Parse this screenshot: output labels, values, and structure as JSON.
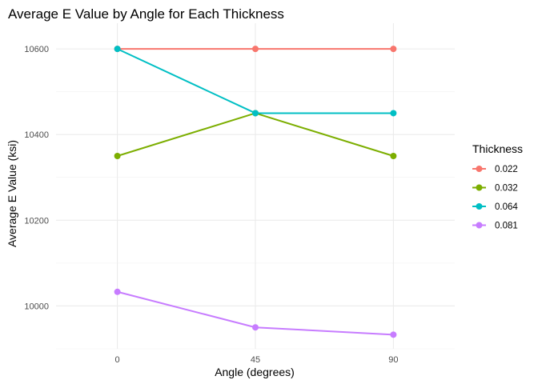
{
  "chart_data": {
    "type": "line",
    "title": "Average E Value by Angle for Each Thickness",
    "xlabel": "Angle (degrees)",
    "ylabel": "Average E Value (ksi)",
    "x": [
      0,
      45,
      90
    ],
    "x_tick_labels": [
      "0",
      "45",
      "90"
    ],
    "xlim": [
      -20,
      110
    ],
    "ylim": [
      9900,
      10660
    ],
    "y_major_ticks": [
      10000,
      10200,
      10400,
      10600
    ],
    "y_tick_labels": [
      "10000",
      "10200",
      "10400",
      "10600"
    ],
    "y_minor_ticks": [
      9900,
      10100,
      10300,
      10500
    ],
    "grid": true,
    "legend": {
      "title": "Thickness",
      "position": "right"
    },
    "series": [
      {
        "name": "0.022",
        "color": "#F8766D",
        "values": [
          10600,
          10600,
          10600
        ]
      },
      {
        "name": "0.032",
        "color": "#7CAE00",
        "values": [
          10350,
          10450,
          10350
        ]
      },
      {
        "name": "0.064",
        "color": "#00BFC4",
        "values": [
          10600,
          10450,
          10450
        ]
      },
      {
        "name": "0.081",
        "color": "#C77CFF",
        "values": [
          10033,
          9950,
          9933
        ]
      }
    ]
  }
}
